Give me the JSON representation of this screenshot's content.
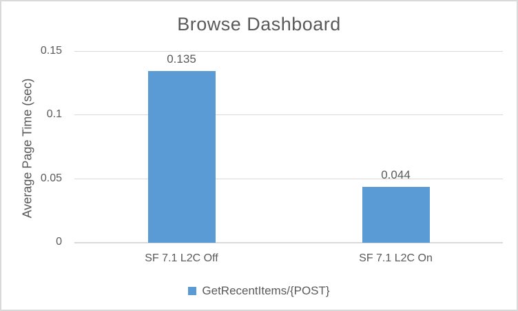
{
  "chart_data": {
    "type": "bar",
    "title": "Browse Dashboard",
    "xlabel": "",
    "ylabel": "Average Page Time (sec)",
    "categories": [
      "SF 7.1 L2C Off",
      "SF 7.1 L2C On"
    ],
    "series": [
      {
        "name": "GetRecentItems/{POST}",
        "values": [
          0.135,
          0.044
        ],
        "value_labels": [
          "0.135",
          "0.044"
        ]
      }
    ],
    "ylim": [
      0,
      0.15
    ],
    "yticks": [
      {
        "value": 0,
        "label": "0"
      },
      {
        "value": 0.05,
        "label": "0.05"
      },
      {
        "value": 0.1,
        "label": "0.1"
      },
      {
        "value": 0.15,
        "label": "0.15"
      }
    ],
    "grid": true,
    "legend_position": "bottom",
    "colors": {
      "bar": "#5B9BD5",
      "text": "#595959",
      "gridline": "#D9D9D9",
      "axis_line": "#D9D9D9",
      "border": "#D9D9D9",
      "background": "#FFFFFF"
    }
  }
}
